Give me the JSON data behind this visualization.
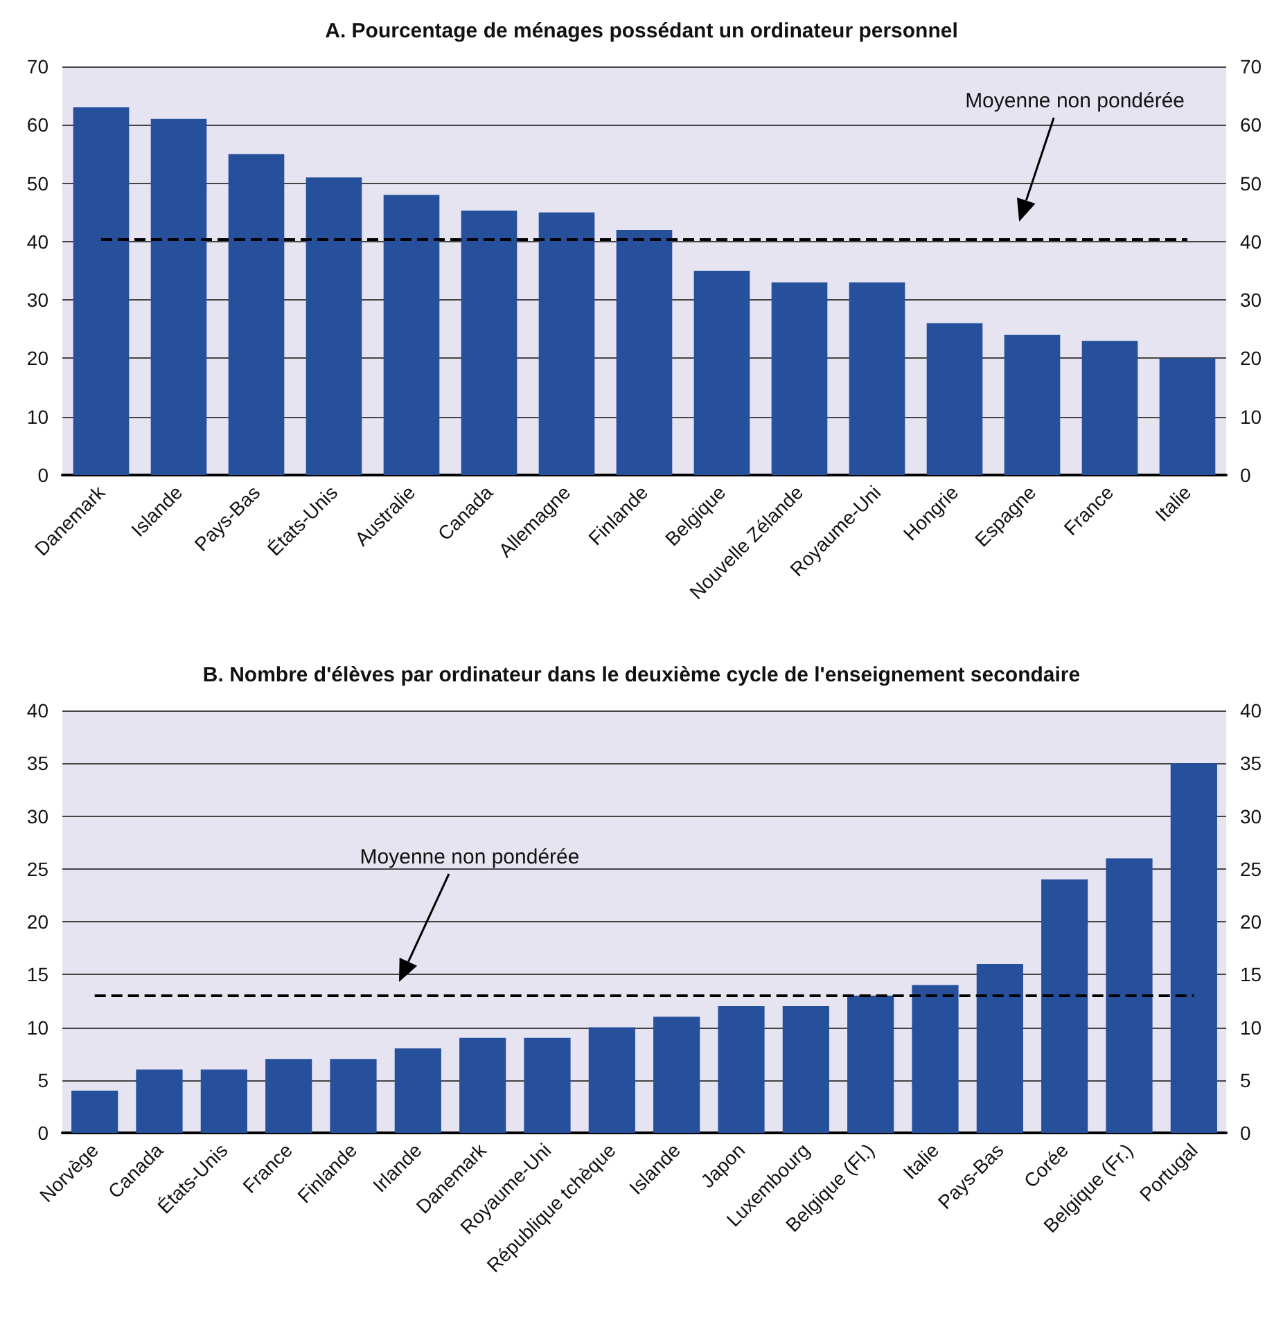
{
  "chart_data": [
    {
      "type": "bar",
      "title": "A. Pourcentage de ménages possédant un ordinateur personnel",
      "categories": [
        "Danemark",
        "Islande",
        "Pays-Bas",
        "États-Unis",
        "Australie",
        "Canada",
        "Allemagne",
        "Finlande",
        "Belgique",
        "Nouvelle Zélande",
        "Royaume-Uni",
        "Hongrie",
        "Espagne",
        "France",
        "Italie"
      ],
      "values": [
        63,
        61,
        55,
        51,
        48,
        45.3,
        45,
        42,
        35,
        33,
        33,
        26,
        24,
        23,
        20
      ],
      "color": "#26509c",
      "ylim": [
        0,
        70
      ],
      "yticks": [
        0,
        10,
        20,
        30,
        40,
        50,
        60,
        70
      ],
      "y2lim": [
        0,
        70
      ],
      "y2ticks": [
        0,
        10,
        20,
        30,
        40,
        50,
        60,
        70
      ],
      "grid": "y",
      "ref_lines": [
        {
          "axis": "y",
          "value": 40.3,
          "label": "Moyenne non pondérée",
          "line_style": "dashed"
        }
      ]
    },
    {
      "type": "bar",
      "title": "B. Nombre d'élèves par ordinateur dans le deuxième cycle de l'enseignement secondaire",
      "categories": [
        "Norvège",
        "Canada",
        "États-Unis",
        "France",
        "Finlande",
        "Irlande",
        "Danemark",
        "Royaume-Uni",
        "République tchèque",
        "Islande",
        "Japon",
        "Luxembourg",
        "Belgique (Fl.)",
        "Italie",
        "Pays-Bas",
        "Corée",
        "Belgique (Fr.)",
        "Portugal"
      ],
      "values": [
        4,
        6,
        6,
        7,
        7,
        8,
        9,
        9,
        10,
        11,
        12,
        12,
        13,
        14,
        16,
        24,
        26,
        35
      ],
      "color": "#26509c",
      "ylim": [
        0,
        40
      ],
      "yticks": [
        0,
        5,
        10,
        15,
        20,
        25,
        30,
        35,
        40
      ],
      "y2lim": [
        0,
        40
      ],
      "y2ticks": [
        0,
        5,
        10,
        15,
        20,
        25,
        30,
        35,
        40
      ],
      "grid": "y",
      "ref_lines": [
        {
          "axis": "y",
          "value": 13,
          "label": "Moyenne non pondérée",
          "line_style": "dashed"
        }
      ]
    }
  ]
}
